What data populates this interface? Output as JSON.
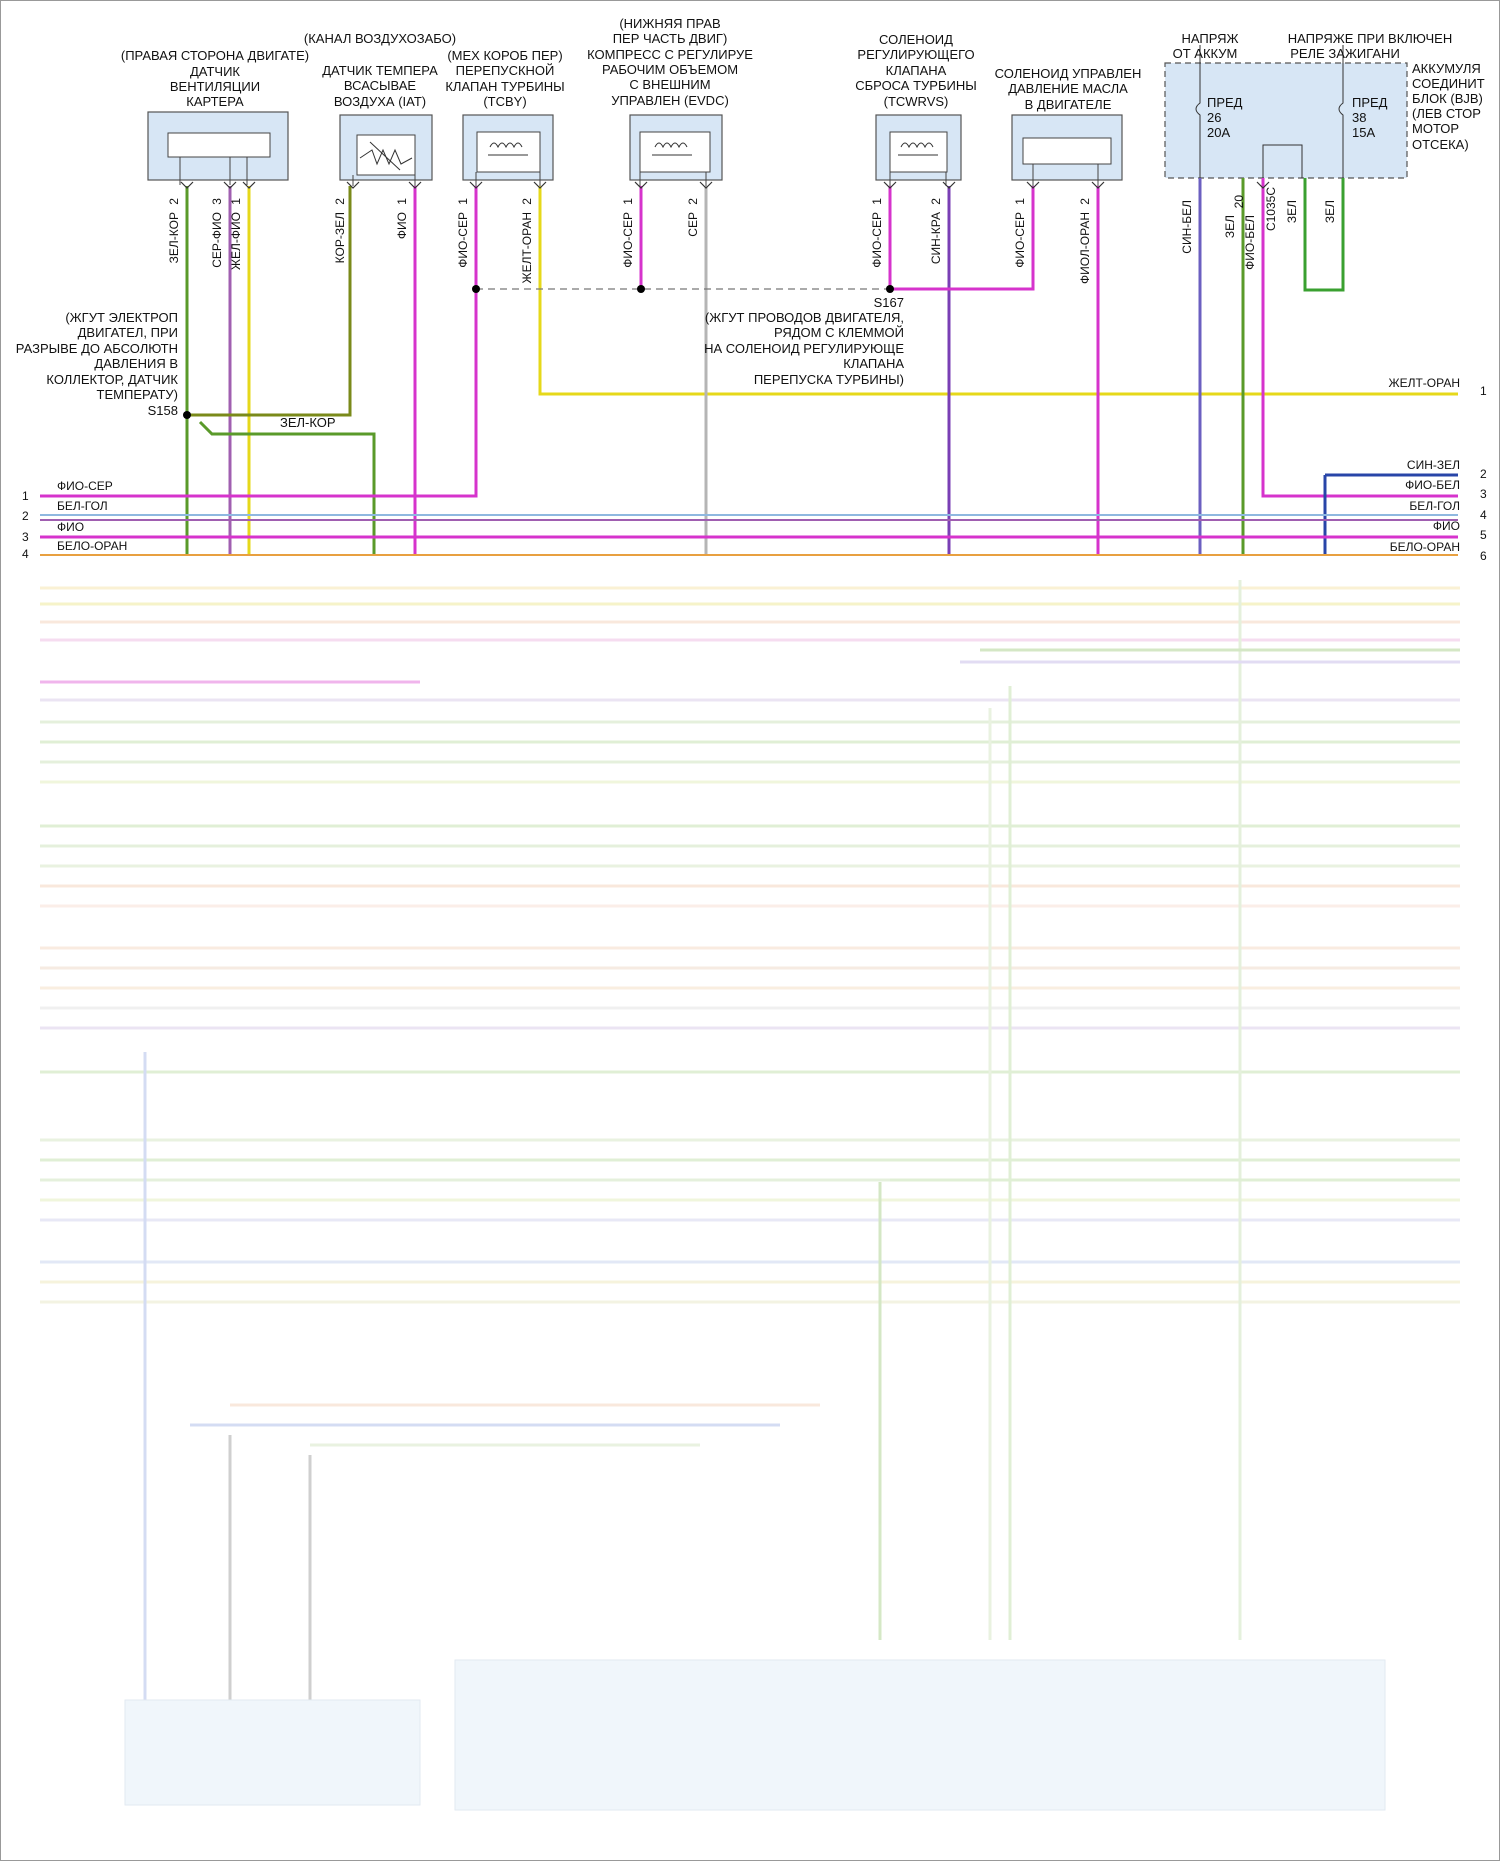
{
  "components": {
    "crankcase": {
      "title_lines": [
        "(ПРАВАЯ СТОРОНА ДВИГАТЕ)",
        "ДАТЧИК",
        "ВЕНТИЛЯЦИИ",
        "КАРТЕРА"
      ],
      "pins": [
        "2",
        "3",
        "1"
      ],
      "wires": [
        "ЗЕЛ-КОР",
        "СЕР-ФИО",
        "ЖЕЛ-ФИО"
      ]
    },
    "iat": {
      "title_lines": [
        "(КАНАЛ ВОЗДУХОЗАБО)",
        "ДАТЧИК ТЕМПЕРА",
        "ВСАСЫВАЕ",
        "ВОЗДУХА (IAT)"
      ],
      "pins": [
        "2",
        "1"
      ],
      "wires": [
        "КОР-ЗЕЛ",
        "ФИО"
      ]
    },
    "tcby": {
      "title_lines": [
        "(МЕХ КОРОБ ПЕР)",
        "ПЕРЕПУСКНОЙ",
        "КЛАПАН ТУРБИНЫ",
        "(TCBY)"
      ],
      "pins": [
        "1",
        "2"
      ],
      "wires": [
        "ФИО-СЕР",
        "ЖЕЛТ-ОРАН"
      ]
    },
    "evdc": {
      "title_lines": [
        "(НИЖНЯЯ ПРАВ",
        "ПЕР ЧАСТЬ ДВИГ)",
        "КОМПРЕСС С РЕГУЛИРУЕ",
        "РАБОЧИМ ОБЪЕМОМ",
        "С ВНЕШНИМ",
        "УПРАВЛЕН (EVDC)"
      ],
      "pins": [
        "1",
        "2"
      ],
      "wires": [
        "ФИО-СЕР",
        "СЕР"
      ]
    },
    "tcwrvs": {
      "title_lines": [
        "СОЛЕНОИД",
        "РЕГУЛИРУЮЩЕГО",
        "КЛАПАНА",
        "СБРОСА ТУРБИНЫ",
        "(TCWRVS)"
      ],
      "pins": [
        "1",
        "2"
      ],
      "wires": [
        "ФИО-СЕР",
        "СИН-КРА"
      ]
    },
    "oil": {
      "title_lines": [
        "СОЛЕНОИД УПРАВЛЕН",
        "ДАВЛЕНИЕ МАСЛА",
        "В ДВИГАТЕЛЕ"
      ],
      "pins": [
        "1",
        "2"
      ],
      "wires": [
        "ФИО-СЕР",
        "ФИОЛ-ОРАН"
      ]
    },
    "bjb": {
      "header_left": [
        "НАПРЯЖ",
        "ОТ АККУМ"
      ],
      "header_right": [
        "НАПРЯЖЕ ПРИ ВКЛЮЧЕН",
        "РЕЛЕ ЗАЖИГАНИ"
      ],
      "side_lines": [
        "АККУМУЛЯ",
        "СОЕДИНИТ",
        "БЛОК (BJB)",
        "(ЛЕВ СТОР",
        "МОТОР",
        "ОТСЕКА)"
      ],
      "fuse_left": [
        "ПРЕД",
        "26",
        "20А"
      ],
      "fuse_right": [
        "ПРЕД",
        "38",
        "15А"
      ],
      "pin": "20",
      "connector": "C1035C",
      "wires": [
        "СИН-БЕЛ",
        "ЗЕЛ",
        "ФИО-БЕЛ",
        "ЗЕЛ",
        "ЗЕЛ"
      ]
    }
  },
  "splices": {
    "s158": {
      "id": "S158",
      "note_lines": [
        "(ЖГУТ ЭЛЕКТРОП",
        "ДВИГАТЕЛ, ПРИ",
        "РАЗРЫВЕ ДО АБСОЛЮТН",
        "ДАВЛЕНИЯ В",
        "КОЛЛЕКТОР, ДАТЧИК",
        "ТЕМПЕРАТУ)"
      ],
      "wire": "ЗЕЛ-КОР"
    },
    "s167": {
      "id": "S167",
      "note_lines": [
        "(ЖГУТ ПРОВОДОВ ДВИГАТЕЛЯ,",
        "РЯДОМ С КЛЕММОЙ",
        "НА СОЛЕНОИД РЕГУЛИРУЮЩЕ",
        "КЛАПАНА",
        "ПЕРЕПУСКА ТУРБИНЫ)"
      ]
    }
  },
  "left_bus": [
    {
      "num": "1",
      "label": "ФИО-СЕР",
      "color": "#d633cc"
    },
    {
      "num": "2",
      "label": "БЕЛ-ГОЛ",
      "color": "#8fb8e0"
    },
    {
      "num": "2",
      "label": "ФИО",
      "color": "#a05fb0"
    },
    {
      "num": "3",
      "label": "БЕЛО-ОРАН",
      "color": "#d633cc"
    },
    {
      "num": "4",
      "label": "",
      "color": "#e8a040"
    }
  ],
  "right_bus": [
    {
      "num": "1",
      "label": "ЖЕЛТ-ОРАН",
      "color": "#e6d81a"
    },
    {
      "num": "2",
      "label": "СИН-ЗЕЛ",
      "color": "#2845a8"
    },
    {
      "num": "3",
      "label": "ФИО-БЕЛ",
      "color": "#d633cc"
    },
    {
      "num": "4",
      "label": "БЕЛ-ГОЛ",
      "color": "#8fb8e0"
    },
    {
      "num": "5",
      "label": "ФИО",
      "color": "#a05fb0"
    },
    {
      "num": "6",
      "label": "БЕЛО-ОРАН",
      "color": "#d633cc"
    }
  ],
  "wire_labels": {
    "zel_kor": "ЗЕЛ-КОР",
    "zhelt_oran": "ЖЕЛТ-ОРАН"
  },
  "colors": {
    "green": "#5a9a2a",
    "violet": "#a05fb0",
    "magenta": "#d633cc",
    "yellow": "#e6d81a",
    "blue": "#2845a8",
    "grey": "#b5b5b5",
    "olive": "#7a8a1a",
    "box_fill": "#d7e6f5"
  }
}
